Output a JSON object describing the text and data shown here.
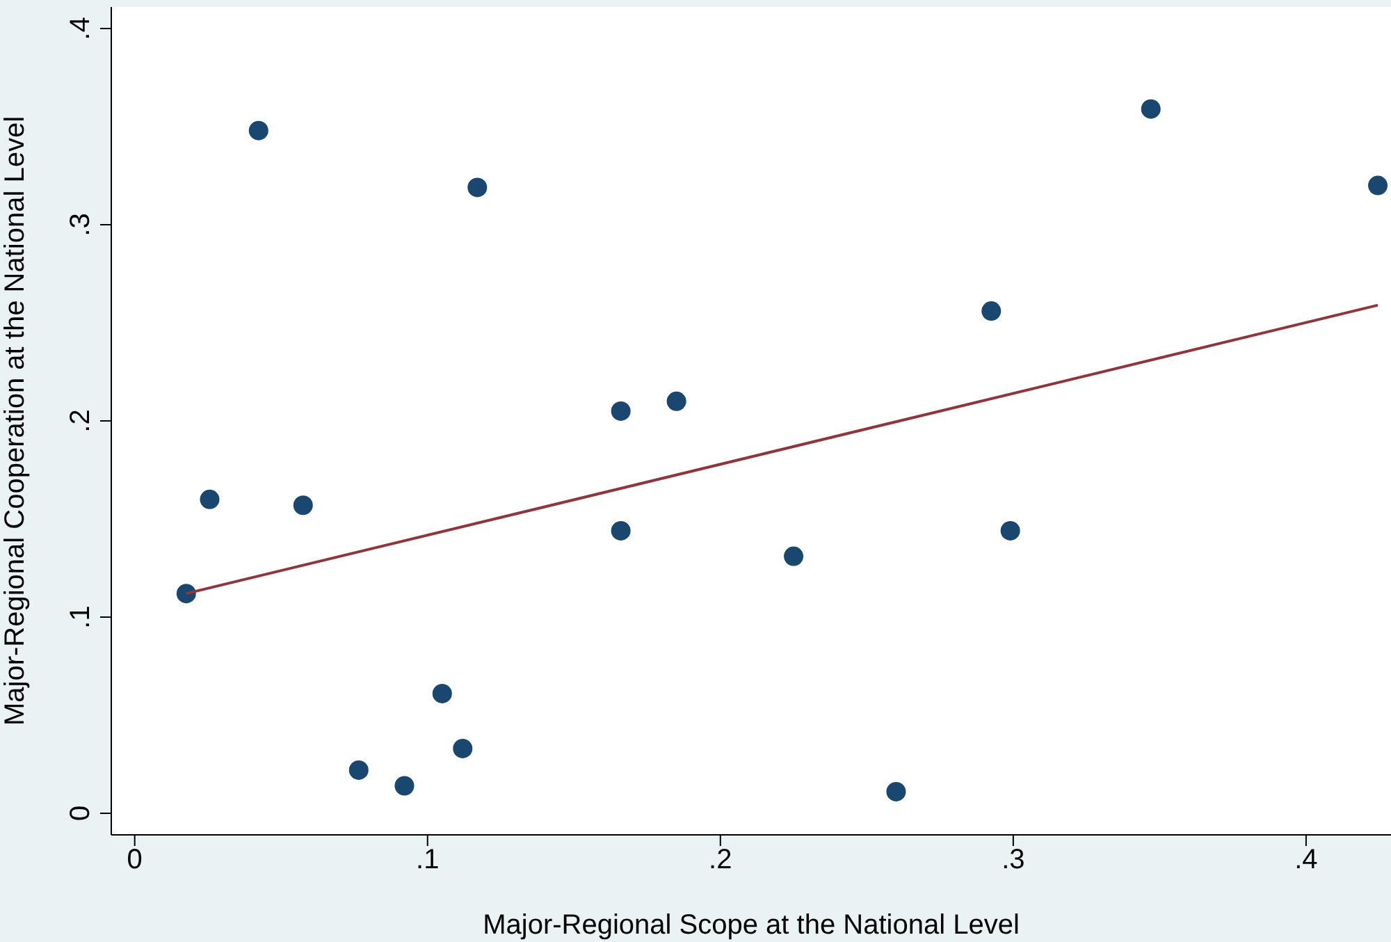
{
  "chart_data": {
    "type": "scatter",
    "xlabel": "Major-Regional Scope at the National Level",
    "ylabel": "Major-Regional Cooperation at the National Level",
    "xlim": [
      -0.008,
      0.429
    ],
    "ylim": [
      -0.011,
      0.411
    ],
    "xticks": [
      {
        "value": 0,
        "label": "0"
      },
      {
        "value": 0.1,
        "label": ".1"
      },
      {
        "value": 0.2,
        "label": ".2"
      },
      {
        "value": 0.3,
        "label": ".3"
      },
      {
        "value": 0.4,
        "label": ".4"
      }
    ],
    "yticks": [
      {
        "value": 0,
        "label": "0"
      },
      {
        "value": 0.1,
        "label": ".1"
      },
      {
        "value": 0.2,
        "label": ".2"
      },
      {
        "value": 0.3,
        "label": ".3"
      },
      {
        "value": 0.4,
        "label": ".4"
      }
    ],
    "grid": false,
    "marker": "circle",
    "series": [
      {
        "color": "#1a476f",
        "x": [
          0.0176,
          0.0256,
          0.0423,
          0.0575,
          0.0765,
          0.0921,
          0.105,
          0.112,
          0.117,
          0.166,
          0.166,
          0.185,
          0.225,
          0.26,
          0.2925,
          0.299,
          0.347,
          0.4245
        ],
        "values": [
          0.112,
          0.16,
          0.348,
          0.157,
          0.022,
          0.014,
          0.061,
          0.033,
          0.319,
          0.205,
          0.144,
          0.21,
          0.131,
          0.011,
          0.256,
          0.144,
          0.359,
          0.32
        ]
      },
      {
        "type": "line",
        "marker": "none",
        "color": "#90353b",
        "x": [
          0.0176,
          0.4245
        ],
        "values": [
          0.112,
          0.259
        ]
      }
    ]
  }
}
